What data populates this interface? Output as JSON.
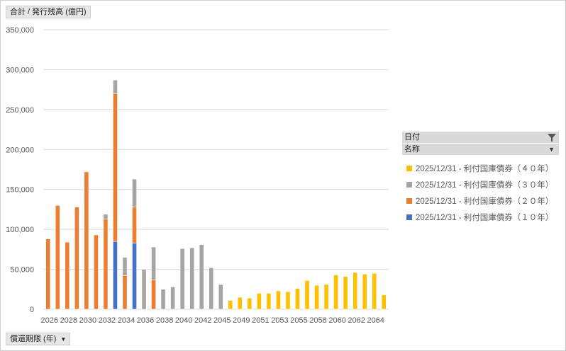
{
  "value_field_button": "合計 / 発行残高 (億円)",
  "axis_field_button": "償還期限 (年)",
  "legend": {
    "header_date": "日付",
    "header_name": "名称"
  },
  "colors": {
    "40y": "#ffc000",
    "30y": "#a5a5a5",
    "20y": "#ed7d31",
    "10y": "#4472c4"
  },
  "chart_data": {
    "type": "bar",
    "stacked": true,
    "title": "",
    "ylabel": "合計 / 発行残高 (億円)",
    "xlabel": "償還期限 (年)",
    "ylim": [
      0,
      350000
    ],
    "yticks": [
      "0",
      "50,000",
      "100,000",
      "150,000",
      "200,000",
      "250,000",
      "300,000",
      "350,000"
    ],
    "grid": true,
    "legend_position": "right",
    "categories": [
      "2026",
      "2027",
      "2028",
      "2029",
      "2030",
      "2031",
      "2032",
      "2033",
      "2034",
      "2035",
      "2036",
      "2037",
      "2038",
      "2039",
      "2040",
      "2041",
      "2042",
      "2043",
      "2045",
      "2048",
      "2049",
      "2050",
      "2051",
      "2052",
      "2053",
      "2054",
      "2055",
      "2056",
      "2058",
      "2059",
      "2060",
      "2061",
      "2062",
      "2063",
      "2064",
      "2065"
    ],
    "xtick_labels": [
      "2026",
      "",
      "2028",
      "",
      "2030",
      "",
      "2032",
      "",
      "2034",
      "",
      "2036",
      "",
      "2038",
      "",
      "2040",
      "",
      "2042",
      "",
      "2045",
      "",
      "2049",
      "",
      "2051",
      "",
      "2053",
      "",
      "2055",
      "",
      "2058",
      "",
      "2060",
      "",
      "2062",
      "",
      "2064",
      ""
    ],
    "series": [
      {
        "name": "2025/12/31 - 利付国庫債券（１０年）",
        "color_key": "10y",
        "values": [
          0,
          0,
          0,
          0,
          0,
          0,
          0,
          85000,
          0,
          83000,
          0,
          0,
          0,
          0,
          0,
          0,
          0,
          0,
          0,
          0,
          0,
          0,
          0,
          0,
          0,
          0,
          0,
          0,
          0,
          0,
          0,
          0,
          0,
          0,
          0,
          0
        ]
      },
      {
        "name": "2025/12/31 - 利付国庫債券（２０年）",
        "color_key": "20y",
        "values": [
          88000,
          130000,
          84000,
          128000,
          172000,
          93000,
          113000,
          185000,
          42000,
          45000,
          0,
          37000,
          0,
          0,
          0,
          0,
          0,
          0,
          0,
          0,
          0,
          0,
          0,
          0,
          0,
          0,
          0,
          0,
          0,
          0,
          0,
          0,
          0,
          0,
          0,
          0
        ]
      },
      {
        "name": "2025/12/31 - 利付国庫債券（３０年）",
        "color_key": "30y",
        "values": [
          0,
          0,
          0,
          0,
          0,
          0,
          6000,
          17000,
          23000,
          35000,
          50000,
          41000,
          25000,
          28000,
          76000,
          77000,
          81000,
          52000,
          31000,
          0,
          0,
          0,
          0,
          0,
          0,
          0,
          0,
          0,
          0,
          0,
          0,
          0,
          0,
          0,
          0,
          0
        ]
      },
      {
        "name": "2025/12/31 - 利付国庫債券（４０年）",
        "color_key": "40y",
        "values": [
          0,
          0,
          0,
          0,
          0,
          0,
          0,
          0,
          0,
          0,
          0,
          0,
          0,
          0,
          0,
          0,
          0,
          0,
          0,
          11000,
          15000,
          14000,
          20000,
          20000,
          23000,
          22000,
          26000,
          36000,
          30000,
          31000,
          43000,
          41000,
          46000,
          44000,
          45000,
          18000
        ]
      }
    ]
  }
}
